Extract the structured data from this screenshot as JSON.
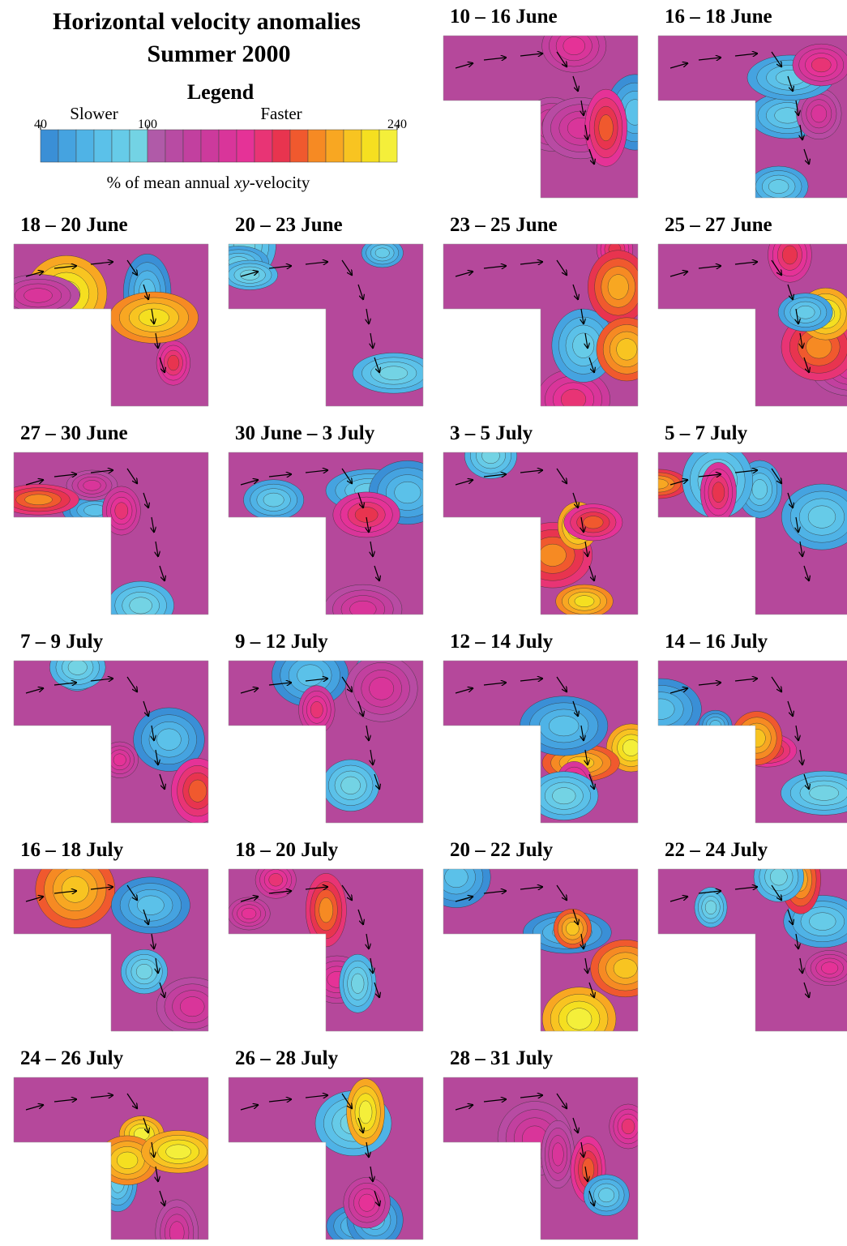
{
  "title": [
    "Horizontal velocity anomalies",
    "Summer 2000"
  ],
  "legend": {
    "title": "Legend",
    "slower": "Slower",
    "faster": "Faster",
    "range": [
      40,
      240
    ],
    "ticks": [
      40,
      100,
      240
    ],
    "colors": [
      "#3a8fd6",
      "#45a3e0",
      "#4fb3e6",
      "#5bc1e9",
      "#66cbe8",
      "#73d3e4",
      "#b05aa8",
      "#b84ba3",
      "#c2409f",
      "#cc3a9c",
      "#d9359a",
      "#e53297",
      "#e83475",
      "#e8344f",
      "#f0592e",
      "#f68a23",
      "#f8a722",
      "#f8c421",
      "#f5df20",
      "#f4ef3a"
    ],
    "caption": [
      "% of mean annual ",
      "xy",
      "-velocity"
    ]
  },
  "panels": [
    "10 – 16 June",
    "16 – 18 June",
    "18 – 20 June",
    "20 – 23 June",
    "23 – 25 June",
    "25 – 27 June",
    "27 – 30 June",
    "30 June – 3 July",
    "3 – 5 July",
    "5 – 7 July",
    "7 – 9 July",
    "9 – 12 July",
    "12 – 14 July",
    "14 – 16 July",
    "16 – 18 July",
    "18 – 20 July",
    "20 – 22 July",
    "22 – 24 July",
    "24 – 26 July",
    "26 – 28 July",
    "28 – 31 July"
  ]
}
